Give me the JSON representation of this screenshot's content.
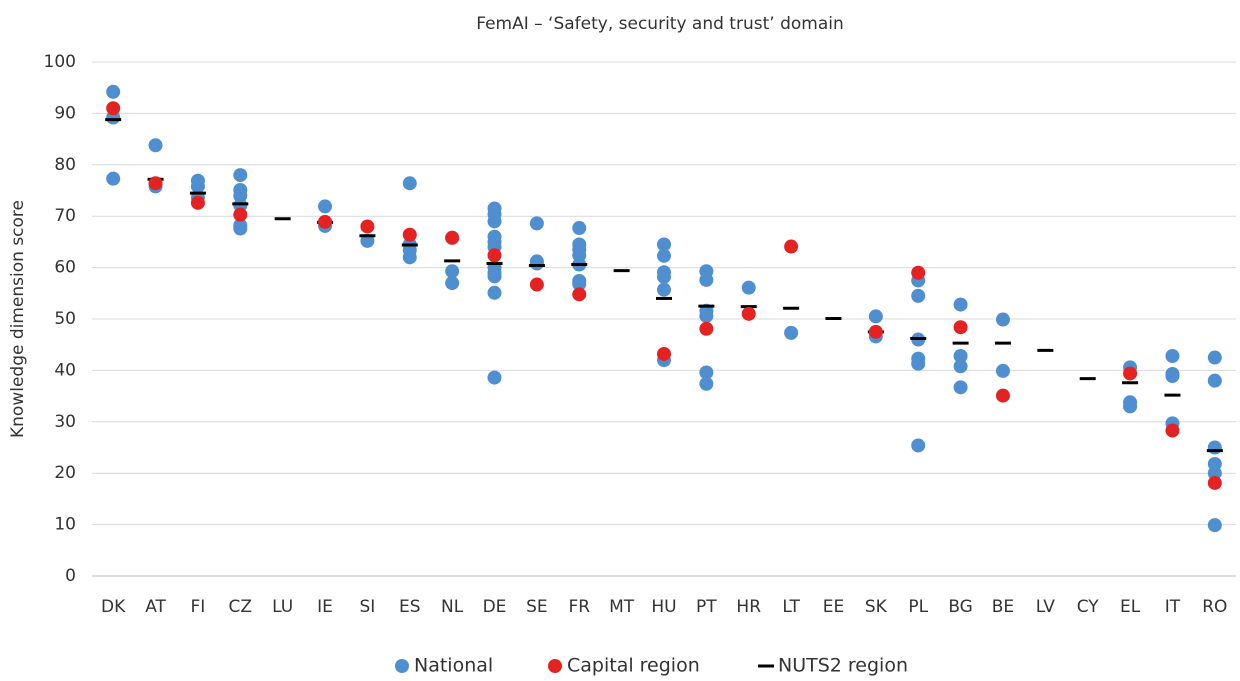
{
  "chart_data": {
    "type": "strip",
    "title": "FemAI – ‘Safety, security and trust’ domain",
    "y_label": "Knowledge dimension score",
    "categories": [
      "DK",
      "AT",
      "FI",
      "CZ",
      "LU",
      "IE",
      "SI",
      "ES",
      "NL",
      "DE",
      "SE",
      "FR",
      "MT",
      "HU",
      "PT",
      "HR",
      "LT",
      "EE",
      "SK",
      "PL",
      "BG",
      "BE",
      "LV",
      "CY",
      "EL",
      "IT",
      "RO"
    ],
    "ylim": [
      0,
      100
    ],
    "yticks": [
      0,
      10,
      20,
      30,
      40,
      50,
      60,
      70,
      80,
      90,
      100
    ],
    "grid": true,
    "legend": "bottom",
    "series": [
      {
        "name": "National",
        "color": "#4f8fd0",
        "marker": "circle",
        "values": [
          [
            94.2,
            89.2,
            77.3
          ],
          [
            83.8,
            75.8
          ],
          [
            76.9,
            75.8,
            73.6
          ],
          [
            78.0,
            75.1,
            74.0,
            72.1,
            68.2,
            67.6
          ],
          [],
          [
            71.9,
            68.1
          ],
          [
            65.2
          ],
          [
            76.4,
            64.5,
            63.4,
            62.0
          ],
          [
            65.8,
            59.3,
            57.0
          ],
          [
            71.5,
            70.4,
            69.0,
            66.0,
            65.0,
            64.0,
            60.0,
            59.0,
            58.3,
            55.1,
            38.6
          ],
          [
            68.6,
            61.2,
            60.8
          ],
          [
            67.7,
            64.5,
            63.5,
            62.4,
            60.6,
            57.4,
            56.8
          ],
          [],
          [
            64.5,
            62.3,
            59.1,
            58.2,
            55.7,
            42.0
          ],
          [
            59.3,
            57.6,
            51.6,
            50.6,
            39.6,
            37.4
          ],
          [
            56.1
          ],
          [
            47.3
          ],
          [],
          [
            50.5,
            46.6
          ],
          [
            57.5,
            54.5,
            46.0,
            42.3,
            41.3,
            25.4
          ],
          [
            52.8,
            42.8,
            40.8,
            36.7
          ],
          [
            49.9,
            39.9
          ],
          [],
          [],
          [
            40.6,
            33.8,
            33.0
          ],
          [
            42.8,
            39.3,
            38.9,
            29.7
          ],
          [
            42.5,
            38.0,
            25.0,
            21.8,
            20.0,
            9.9
          ]
        ]
      },
      {
        "name": "Capital region",
        "color": "#e42222",
        "marker": "circle",
        "values": [
          91.0,
          76.4,
          72.6,
          70.3,
          null,
          68.9,
          68.0,
          66.4,
          65.8,
          62.4,
          56.7,
          54.8,
          null,
          43.2,
          48.1,
          51.0,
          64.1,
          null,
          47.5,
          59.0,
          48.4,
          35.1,
          null,
          null,
          39.4,
          28.3,
          18.1
        ]
      },
      {
        "name": "NUTS2 region",
        "color": "#000000",
        "marker": "dash",
        "values": [
          88.8,
          77.2,
          74.5,
          72.4,
          69.5,
          68.8,
          66.2,
          64.4,
          61.3,
          60.8,
          60.4,
          60.6,
          59.4,
          54.0,
          52.5,
          52.4,
          52.1,
          50.1,
          47.5,
          46.2,
          45.3,
          45.3,
          43.9,
          38.4,
          37.6,
          35.2,
          24.4
        ]
      }
    ]
  }
}
